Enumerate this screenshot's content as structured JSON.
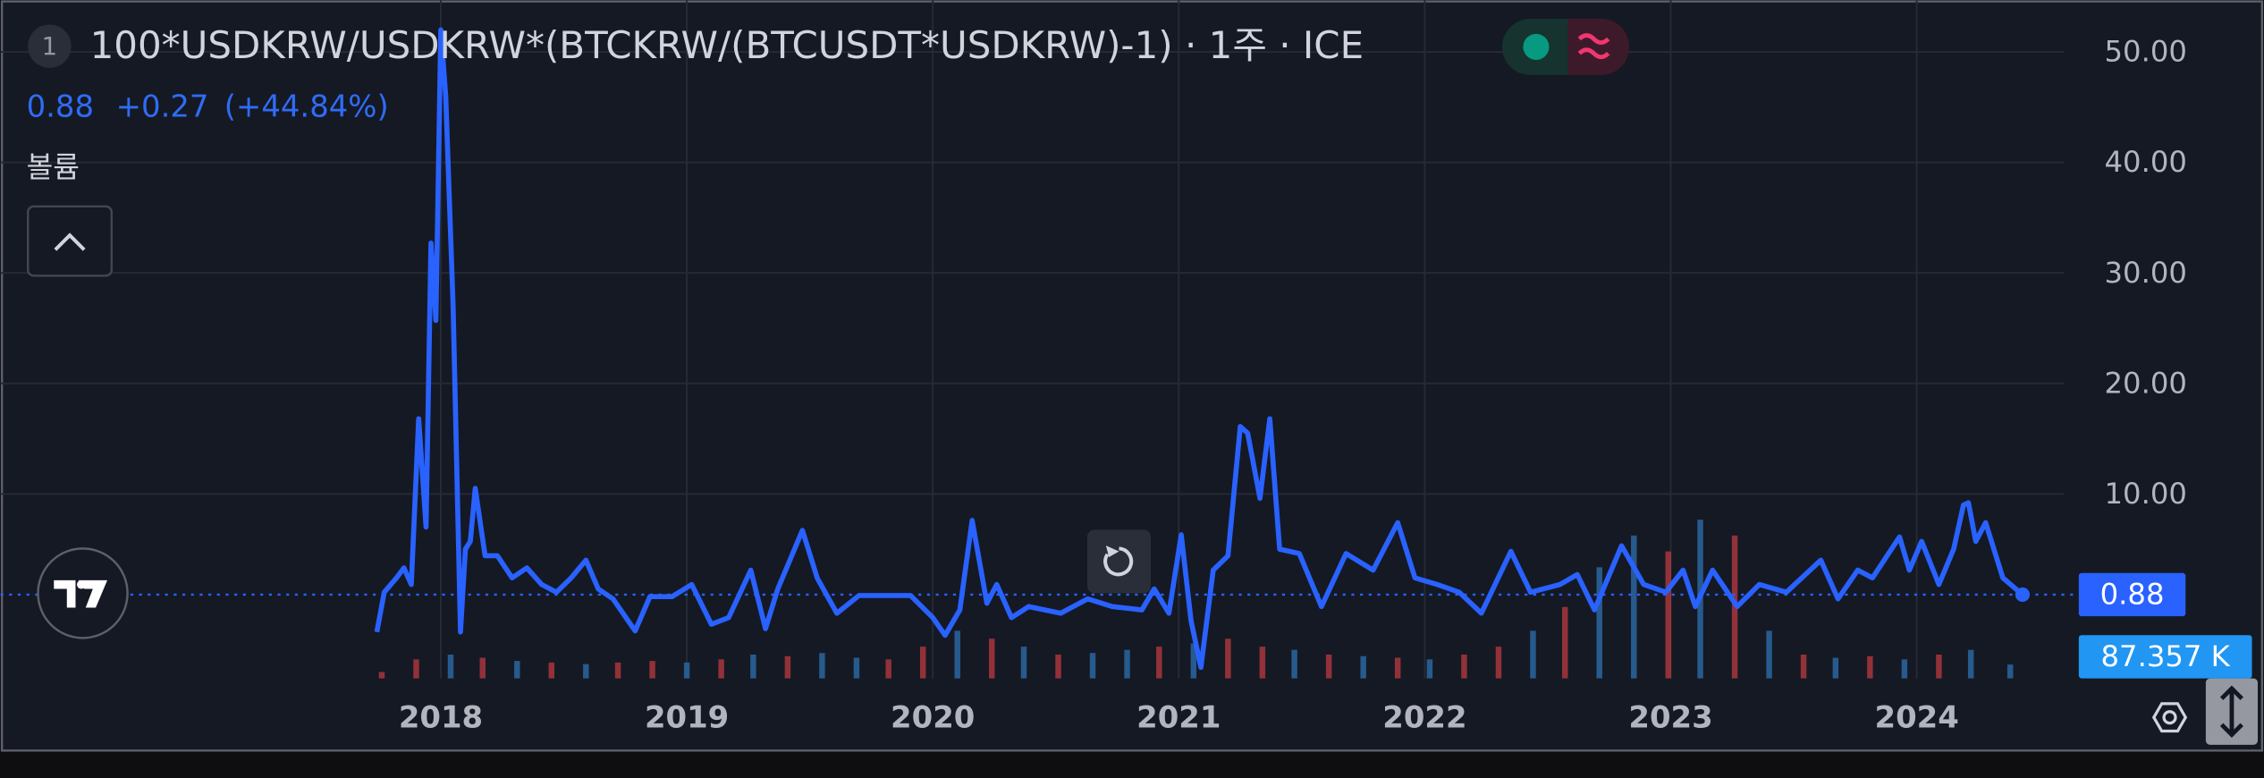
{
  "chart_data": {
    "type": "line",
    "badge": "1",
    "title": "100*USDKRW/USDKRW*(BTCKRW/(BTCUSDT*USDKRW)-1) · 1주 · ICE",
    "change": "+0.27",
    "change_pct": "(+44.84%)",
    "volume_title": "볼륨",
    "color": "#2962ff",
    "x": [
      2017.74,
      2017.77,
      2017.82,
      2017.85,
      2017.88,
      2017.91,
      2017.94,
      2017.96,
      2017.98,
      2018.0,
      2018.02,
      2018.05,
      2018.08,
      2018.1,
      2018.12,
      2018.14,
      2018.18,
      2018.23,
      2018.29,
      2018.35,
      2018.41,
      2018.47,
      2018.53,
      2018.59,
      2018.64,
      2018.7,
      2018.79,
      2018.85,
      2018.94,
      2019.02,
      2019.1,
      2019.17,
      2019.26,
      2019.32,
      2019.37,
      2019.47,
      2019.53,
      2019.61,
      2019.7,
      2019.82,
      2019.91,
      2020.0,
      2020.05,
      2020.11,
      2020.16,
      2020.22,
      2020.26,
      2020.32,
      2020.39,
      2020.52,
      2020.63,
      2020.73,
      2020.85,
      2020.9,
      2020.96,
      2021.01,
      2021.05,
      2021.09,
      2021.14,
      2021.2,
      2021.25,
      2021.28,
      2021.33,
      2021.37,
      2021.41,
      2021.49,
      2021.58,
      2021.68,
      2021.79,
      2021.89,
      2021.96,
      2022.05,
      2022.14,
      2022.23,
      2022.35,
      2022.43,
      2022.55,
      2022.62,
      2022.69,
      2022.8,
      2022.89,
      2022.98,
      2023.05,
      2023.1,
      2023.17,
      2023.27,
      2023.36,
      2023.47,
      2023.61,
      2023.68,
      2023.76,
      2023.82,
      2023.93,
      2023.97,
      2024.02,
      2024.09,
      2024.15,
      2024.19,
      2024.21,
      2024.24,
      2024.28,
      2024.35,
      2024.43
    ],
    "values": [
      -2.5,
      1.1,
      2.4,
      3.3,
      1.8,
      16.8,
      7,
      32.7,
      25.7,
      52,
      46,
      27,
      -2.5,
      5,
      5.7,
      10.5,
      4.4,
      4.4,
      2.4,
      3.3,
      1.8,
      1.1,
      2.4,
      4,
      1.4,
      0.5,
      -2.4,
      0.7,
      0.7,
      1.8,
      -1.8,
      -1.2,
      3.1,
      -2.2,
      1.4,
      6.7,
      2.4,
      -0.8,
      0.8,
      0.8,
      0.8,
      -1.2,
      -2.8,
      -0.5,
      7.6,
      0.1,
      1.8,
      -1.2,
      -0.2,
      -0.8,
      0.5,
      -0.2,
      -0.5,
      1.4,
      -0.8,
      6.3,
      -1.5,
      -5.7,
      3.1,
      4.4,
      16.1,
      15.5,
      9.6,
      16.8,
      5,
      4.6,
      -0.2,
      4.6,
      3.1,
      7.4,
      2.4,
      1.8,
      1.1,
      -0.8,
      4.8,
      1.1,
      1.8,
      2.7,
      -0.5,
      5.3,
      1.8,
      1.1,
      3.1,
      -0.2,
      3.1,
      -0.2,
      1.8,
      1.1,
      4,
      0.5,
      3.1,
      2.4,
      6.1,
      3.1,
      5.7,
      1.8,
      5,
      9,
      9.2,
      5.7,
      7.4,
      2.4,
      0.88
    ],
    "xlim": [
      2016.21,
      2024.6
    ],
    "ylim": [
      -6.7,
      54.7
    ],
    "xticks": [
      2018,
      2019,
      2020,
      2021,
      2022,
      2023,
      2024
    ],
    "yticks": [
      {
        "value": 10,
        "label": "10.00"
      },
      {
        "value": 20,
        "label": "20.00"
      },
      {
        "value": 30,
        "label": "30.00"
      },
      {
        "value": 40,
        "label": "40.00"
      },
      {
        "value": 50,
        "label": "50.00"
      }
    ],
    "grid": true,
    "volume": {
      "x": [
        2017.76,
        2017.9,
        2018.04,
        2018.17,
        2018.31,
        2018.45,
        2018.59,
        2018.72,
        2018.86,
        2019.0,
        2019.14,
        2019.27,
        2019.41,
        2019.55,
        2019.69,
        2019.82,
        2019.96,
        2020.1,
        2020.24,
        2020.37,
        2020.51,
        2020.65,
        2020.79,
        2020.92,
        2021.06,
        2021.2,
        2021.34,
        2021.47,
        2021.61,
        2021.75,
        2021.89,
        2022.02,
        2022.16,
        2022.3,
        2022.44,
        2022.57,
        2022.71,
        2022.85,
        2022.99,
        2023.12,
        2023.26,
        2023.4,
        2023.54,
        2023.67,
        2023.81,
        2023.95,
        2024.09,
        2024.22,
        2024.38
      ],
      "values": [
        40,
        120,
        150,
        130,
        110,
        100,
        90,
        100,
        110,
        100,
        120,
        150,
        140,
        160,
        130,
        120,
        200,
        300,
        250,
        200,
        150,
        160,
        180,
        200,
        220,
        250,
        200,
        180,
        150,
        140,
        130,
        120,
        150,
        200,
        300,
        450,
        700,
        900,
        800,
        1000,
        900,
        300,
        150,
        130,
        140,
        120,
        150,
        180,
        87.357
      ],
      "colors": [
        "#b2373f",
        "#b2373f",
        "#2c6aa8",
        "#b2373f",
        "#2c6aa8",
        "#b2373f",
        "#2c6aa8",
        "#b2373f",
        "#b2373f",
        "#2c6aa8",
        "#b2373f",
        "#2c6aa8",
        "#b2373f",
        "#2c6aa8",
        "#2c6aa8",
        "#b2373f",
        "#b2373f",
        "#2c6aa8",
        "#b2373f",
        "#2c6aa8",
        "#b2373f",
        "#2c6aa8",
        "#2c6aa8",
        "#b2373f",
        "#2c6aa8",
        "#b2373f",
        "#b2373f",
        "#2c6aa8",
        "#b2373f",
        "#2c6aa8",
        "#b2373f",
        "#2c6aa8",
        "#b2373f",
        "#b2373f",
        "#2c6aa8",
        "#b2373f",
        "#2c6aa8",
        "#2c6aa8",
        "#b2373f",
        "#2c6aa8",
        "#b2373f",
        "#2c6aa8",
        "#b2373f",
        "#2c6aa8",
        "#b2373f",
        "#2c6aa8",
        "#b2373f",
        "#2c6aa8",
        "#2c6aa8"
      ],
      "last_label": "87.357 K"
    }
  }
}
